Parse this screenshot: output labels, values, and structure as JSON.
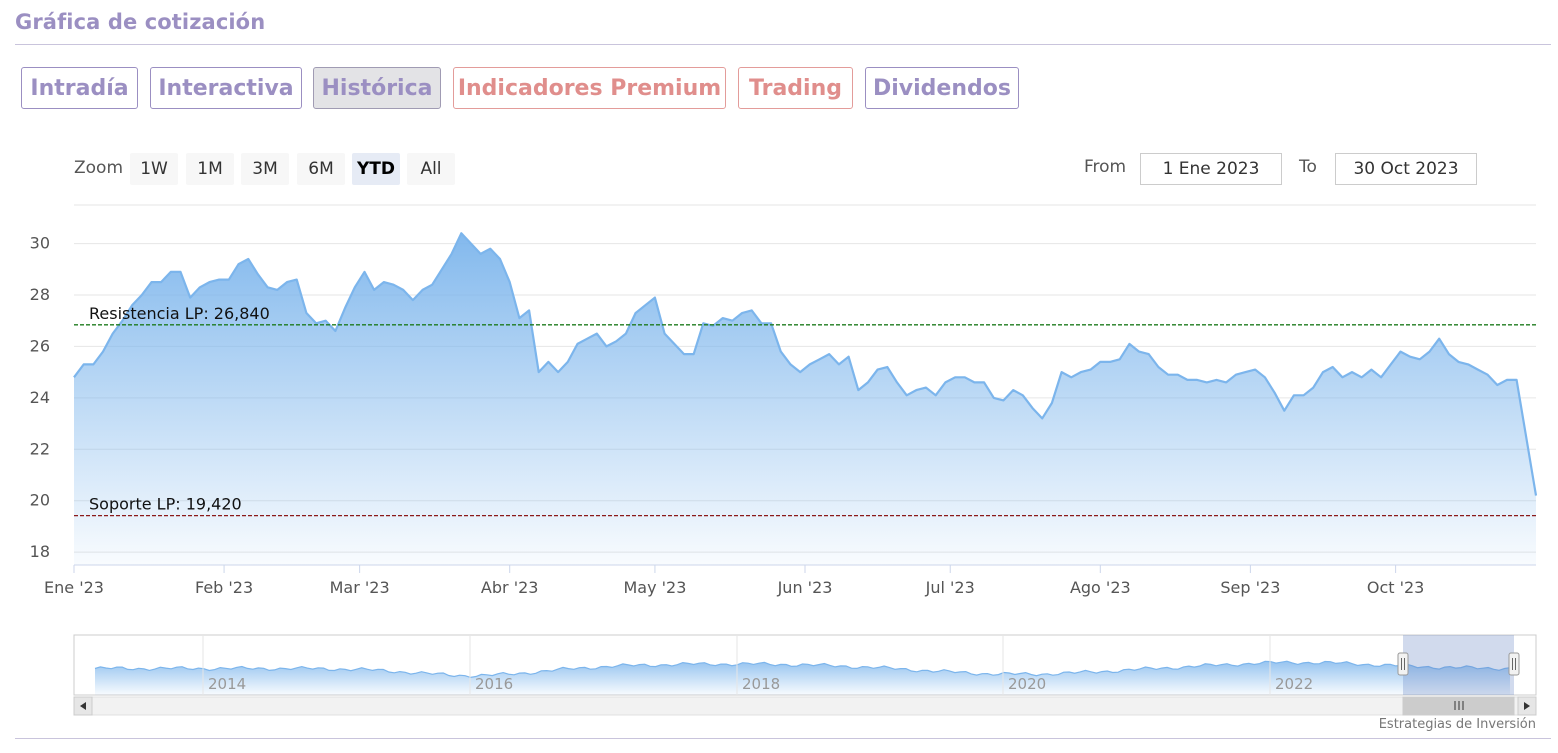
{
  "header": {
    "title": "Gráfica de cotización"
  },
  "tabs": [
    {
      "label": "Intradía"
    },
    {
      "label": "Interactiva"
    },
    {
      "label": "Histórica"
    },
    {
      "label": "Indicadores Premium"
    },
    {
      "label": "Trading"
    },
    {
      "label": "Dividendos"
    }
  ],
  "rangeSelector": {
    "zoom_label": "Zoom",
    "buttons": [
      "1W",
      "1M",
      "3M",
      "6M",
      "YTD",
      "All"
    ],
    "selected": "YTD",
    "from_label": "From",
    "from_value": "1 Ene 2023",
    "to_label": "To",
    "to_value": "30 Oct 2023"
  },
  "credit": "Estrategias de Inversión",
  "colors": {
    "accent": "#9b8fc2",
    "premium": "#e08e8c",
    "series": "#7cb5ec",
    "resistance": "#1e7b1e",
    "support": "#8b1a1a"
  },
  "chart_data": {
    "type": "area",
    "title": "",
    "xlabel": "",
    "ylabel": "",
    "ylim": [
      17.5,
      31.5
    ],
    "yticks": [
      18,
      20,
      22,
      24,
      26,
      28,
      30
    ],
    "grid": true,
    "x_range": [
      "2023-01-01",
      "2023-10-30"
    ],
    "xticks": [
      {
        "date": "2023-01-01",
        "label": "Ene '23"
      },
      {
        "date": "2023-02-01",
        "label": "Feb '23"
      },
      {
        "date": "2023-03-01",
        "label": "Mar '23"
      },
      {
        "date": "2023-04-01",
        "label": "Abr '23"
      },
      {
        "date": "2023-05-01",
        "label": "May '23"
      },
      {
        "date": "2023-06-01",
        "label": "Jun '23"
      },
      {
        "date": "2023-07-01",
        "label": "Jul '23"
      },
      {
        "date": "2023-08-01",
        "label": "Ago '23"
      },
      {
        "date": "2023-09-01",
        "label": "Sep '23"
      },
      {
        "date": "2023-10-01",
        "label": "Oct '23"
      }
    ],
    "series": [
      {
        "values": [
          [
            "2023-01-01",
            24.8
          ],
          [
            "2023-01-03",
            25.3
          ],
          [
            "2023-01-05",
            25.3
          ],
          [
            "2023-01-07",
            25.8
          ],
          [
            "2023-01-09",
            26.5
          ],
          [
            "2023-01-11",
            27.0
          ],
          [
            "2023-01-13",
            27.6
          ],
          [
            "2023-01-15",
            28.0
          ],
          [
            "2023-01-17",
            28.5
          ],
          [
            "2023-01-19",
            28.5
          ],
          [
            "2023-01-21",
            28.9
          ],
          [
            "2023-01-23",
            28.9
          ],
          [
            "2023-01-25",
            27.9
          ],
          [
            "2023-01-27",
            28.3
          ],
          [
            "2023-01-29",
            28.5
          ],
          [
            "2023-01-31",
            28.6
          ],
          [
            "2023-02-02",
            28.6
          ],
          [
            "2023-02-04",
            29.2
          ],
          [
            "2023-02-06",
            29.4
          ],
          [
            "2023-02-08",
            28.8
          ],
          [
            "2023-02-10",
            28.3
          ],
          [
            "2023-02-12",
            28.2
          ],
          [
            "2023-02-14",
            28.5
          ],
          [
            "2023-02-16",
            28.6
          ],
          [
            "2023-02-18",
            27.3
          ],
          [
            "2023-02-20",
            26.9
          ],
          [
            "2023-02-22",
            27.0
          ],
          [
            "2023-02-24",
            26.6
          ],
          [
            "2023-02-26",
            27.5
          ],
          [
            "2023-02-28",
            28.3
          ],
          [
            "2023-03-02",
            28.9
          ],
          [
            "2023-03-04",
            28.2
          ],
          [
            "2023-03-06",
            28.5
          ],
          [
            "2023-03-08",
            28.4
          ],
          [
            "2023-03-10",
            28.2
          ],
          [
            "2023-03-12",
            27.8
          ],
          [
            "2023-03-14",
            28.2
          ],
          [
            "2023-03-16",
            28.4
          ],
          [
            "2023-03-18",
            29.0
          ],
          [
            "2023-03-20",
            29.6
          ],
          [
            "2023-03-22",
            30.4
          ],
          [
            "2023-03-24",
            30.0
          ],
          [
            "2023-03-26",
            29.6
          ],
          [
            "2023-03-28",
            29.8
          ],
          [
            "2023-03-30",
            29.4
          ],
          [
            "2023-04-01",
            28.5
          ],
          [
            "2023-04-03",
            27.1
          ],
          [
            "2023-04-05",
            27.4
          ],
          [
            "2023-04-07",
            25.0
          ],
          [
            "2023-04-09",
            25.4
          ],
          [
            "2023-04-11",
            25.0
          ],
          [
            "2023-04-13",
            25.4
          ],
          [
            "2023-04-15",
            26.1
          ],
          [
            "2023-04-17",
            26.3
          ],
          [
            "2023-04-19",
            26.5
          ],
          [
            "2023-04-21",
            26.0
          ],
          [
            "2023-04-23",
            26.2
          ],
          [
            "2023-04-25",
            26.5
          ],
          [
            "2023-04-27",
            27.3
          ],
          [
            "2023-04-29",
            27.6
          ],
          [
            "2023-05-01",
            27.9
          ],
          [
            "2023-05-03",
            26.5
          ],
          [
            "2023-05-05",
            26.1
          ],
          [
            "2023-05-07",
            25.7
          ],
          [
            "2023-05-09",
            25.7
          ],
          [
            "2023-05-11",
            26.9
          ],
          [
            "2023-05-13",
            26.8
          ],
          [
            "2023-05-15",
            27.1
          ],
          [
            "2023-05-17",
            27.0
          ],
          [
            "2023-05-19",
            27.3
          ],
          [
            "2023-05-21",
            27.4
          ],
          [
            "2023-05-23",
            26.9
          ],
          [
            "2023-05-25",
            26.9
          ],
          [
            "2023-05-27",
            25.8
          ],
          [
            "2023-05-29",
            25.3
          ],
          [
            "2023-05-31",
            25.0
          ],
          [
            "2023-06-02",
            25.3
          ],
          [
            "2023-06-04",
            25.5
          ],
          [
            "2023-06-06",
            25.7
          ],
          [
            "2023-06-08",
            25.3
          ],
          [
            "2023-06-10",
            25.6
          ],
          [
            "2023-06-12",
            24.3
          ],
          [
            "2023-06-14",
            24.6
          ],
          [
            "2023-06-16",
            25.1
          ],
          [
            "2023-06-18",
            25.2
          ],
          [
            "2023-06-20",
            24.6
          ],
          [
            "2023-06-22",
            24.1
          ],
          [
            "2023-06-24",
            24.3
          ],
          [
            "2023-06-26",
            24.4
          ],
          [
            "2023-06-28",
            24.1
          ],
          [
            "2023-06-30",
            24.6
          ],
          [
            "2023-07-02",
            24.8
          ],
          [
            "2023-07-04",
            24.8
          ],
          [
            "2023-07-06",
            24.6
          ],
          [
            "2023-07-08",
            24.6
          ],
          [
            "2023-07-10",
            24.0
          ],
          [
            "2023-07-12",
            23.9
          ],
          [
            "2023-07-14",
            24.3
          ],
          [
            "2023-07-16",
            24.1
          ],
          [
            "2023-07-18",
            23.6
          ],
          [
            "2023-07-20",
            23.2
          ],
          [
            "2023-07-22",
            23.8
          ],
          [
            "2023-07-24",
            25.0
          ],
          [
            "2023-07-26",
            24.8
          ],
          [
            "2023-07-28",
            25.0
          ],
          [
            "2023-07-30",
            25.1
          ],
          [
            "2023-08-01",
            25.4
          ],
          [
            "2023-08-03",
            25.4
          ],
          [
            "2023-08-05",
            25.5
          ],
          [
            "2023-08-07",
            26.1
          ],
          [
            "2023-08-09",
            25.8
          ],
          [
            "2023-08-11",
            25.7
          ],
          [
            "2023-08-13",
            25.2
          ],
          [
            "2023-08-15",
            24.9
          ],
          [
            "2023-08-17",
            24.9
          ],
          [
            "2023-08-19",
            24.7
          ],
          [
            "2023-08-21",
            24.7
          ],
          [
            "2023-08-23",
            24.6
          ],
          [
            "2023-08-25",
            24.7
          ],
          [
            "2023-08-27",
            24.6
          ],
          [
            "2023-08-29",
            24.9
          ],
          [
            "2023-08-31",
            25.0
          ],
          [
            "2023-09-02",
            25.1
          ],
          [
            "2023-09-04",
            24.8
          ],
          [
            "2023-09-06",
            24.2
          ],
          [
            "2023-09-08",
            23.5
          ],
          [
            "2023-09-10",
            24.1
          ],
          [
            "2023-09-12",
            24.1
          ],
          [
            "2023-09-14",
            24.4
          ],
          [
            "2023-09-16",
            25.0
          ],
          [
            "2023-09-18",
            25.2
          ],
          [
            "2023-09-20",
            24.8
          ],
          [
            "2023-09-22",
            25.0
          ],
          [
            "2023-09-24",
            24.8
          ],
          [
            "2023-09-26",
            25.1
          ],
          [
            "2023-09-28",
            24.8
          ],
          [
            "2023-09-30",
            25.3
          ],
          [
            "2023-10-02",
            25.8
          ],
          [
            "2023-10-04",
            25.6
          ],
          [
            "2023-10-06",
            25.5
          ],
          [
            "2023-10-08",
            25.8
          ],
          [
            "2023-10-10",
            26.3
          ],
          [
            "2023-10-12",
            25.7
          ],
          [
            "2023-10-14",
            25.4
          ],
          [
            "2023-10-16",
            25.3
          ],
          [
            "2023-10-18",
            25.1
          ],
          [
            "2023-10-20",
            24.9
          ],
          [
            "2023-10-22",
            24.5
          ],
          [
            "2023-10-24",
            24.7
          ],
          [
            "2023-10-26",
            24.7
          ],
          [
            "2023-10-30",
            20.2
          ]
        ]
      }
    ],
    "reference_lines": [
      {
        "label": "Resistencia LP: 26,840",
        "value": 26.84,
        "style": "dashed"
      },
      {
        "label": "Soporte LP: 19,420",
        "value": 19.42,
        "style": "dashed"
      }
    ],
    "navigator": {
      "labels": [
        "2014",
        "2016",
        "2018",
        "2020",
        "2022"
      ]
    }
  }
}
